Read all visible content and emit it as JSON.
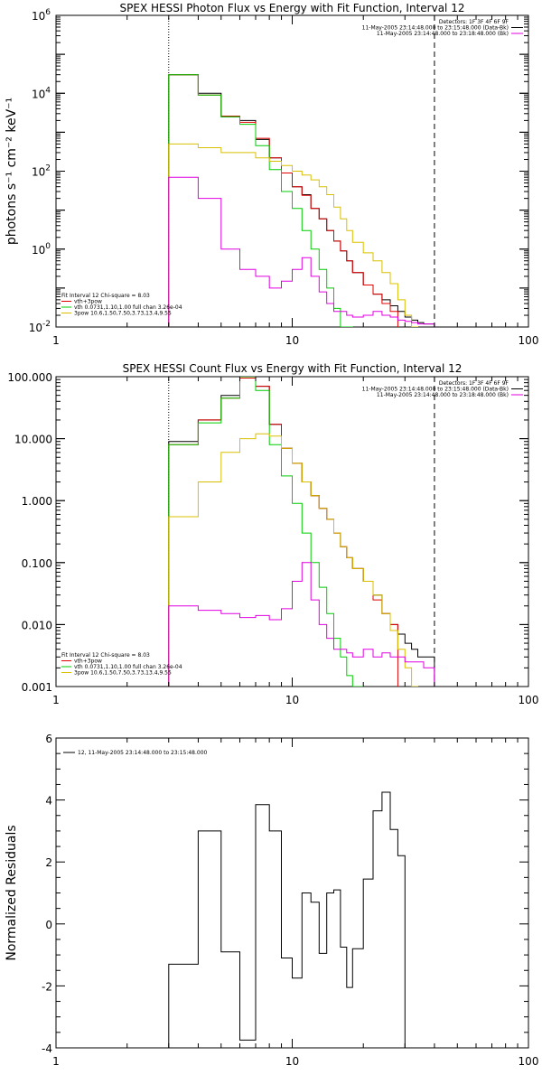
{
  "chart_data": [
    {
      "type": "line",
      "title": "SPEX HESSI Photon Flux vs Energy with Fit Function, Interval 12",
      "xlabel": "",
      "ylabel": "photons s⁻¹ cm⁻² keV⁻¹",
      "xscale": "log",
      "yscale": "log",
      "xlim": [
        1,
        100
      ],
      "ylim": [
        0.01,
        1000000
      ],
      "xticks": [
        1,
        10,
        100
      ],
      "xtick_labels": [
        "1",
        "10",
        "100"
      ],
      "yticks": [
        0.01,
        1,
        100,
        10000,
        1000000
      ],
      "ytick_labels": [
        {
          "base": "10",
          "exp": "-2"
        },
        {
          "base": "10",
          "exp": "0"
        },
        {
          "base": "10",
          "exp": "2"
        },
        {
          "base": "10",
          "exp": "4"
        },
        {
          "base": "10",
          "exp": "6"
        }
      ],
      "vlines": [
        {
          "x": 3,
          "style": "dotted"
        },
        {
          "x": 40,
          "style": "dashed"
        }
      ],
      "legend_tr": [
        "Detectors: 1F 3F 4F 6F 9F",
        "11-May-2005 23:14:48.000 to 23:15:48.000 (Data-Bk)",
        "11-May-2005 23:14:48.000 to 23:18:48.000 (Bk)"
      ],
      "legend_tr_colors": [
        "#000000",
        "#000000",
        "#e000e0"
      ],
      "legend_bl": [
        "Fit Interval 12   Chi-square = 8.03",
        "vth+3pow",
        "vth 0.0731,1.10,1.00  full chan 3.26e-04",
        "3pow 10.6,1.50,7.50,3.73,13.4,9.55"
      ],
      "legend_bl_colors": [
        "",
        "#e00000",
        "#00cc00",
        "#d8c000"
      ],
      "edges": [
        3,
        4,
        5,
        6,
        7,
        8,
        9,
        10,
        11,
        12,
        13,
        14,
        15,
        16,
        17,
        18,
        20,
        22,
        24,
        26,
        28,
        30,
        32,
        34,
        36,
        38,
        40
      ],
      "series": [
        {
          "color": "#000000",
          "values": [
            30000,
            10000,
            2500,
            2000,
            650,
            220,
            90,
            40,
            25,
            11,
            6,
            3,
            1.6,
            0.9,
            0.5,
            0.25,
            0.12,
            0.07,
            0.05,
            0.035,
            0.025,
            0.018,
            0.015,
            0.013,
            0.012,
            0.012
          ]
        },
        {
          "color": "#e00000",
          "values": [
            30000,
            9000,
            2600,
            1800,
            700,
            220,
            90,
            40,
            24,
            11,
            6,
            3,
            1.6,
            0.9,
            0.5,
            0.25,
            0.12,
            0.07,
            0.04,
            0.025
          ]
        },
        {
          "color": "#00cc00",
          "values": [
            30000,
            9000,
            2500,
            1600,
            450,
            110,
            30,
            11,
            3,
            1,
            0.3,
            0.1,
            0.03,
            0.01,
            0.01
          ]
        },
        {
          "color": "#d8c000",
          "values": [
            500,
            400,
            300,
            300,
            220,
            180,
            140,
            100,
            80,
            60,
            40,
            25,
            12,
            6,
            3,
            1.5,
            0.8,
            0.5,
            0.25,
            0.13,
            0.05,
            0.02,
            0.01
          ]
        },
        {
          "color": "#e000e0",
          "values": [
            70,
            20,
            1,
            0.3,
            0.2,
            0.1,
            0.15,
            0.3,
            0.6,
            0.2,
            0.08,
            0.04,
            0.025,
            0.025,
            0.02,
            0.018,
            0.02,
            0.025,
            0.02,
            0.018,
            0.015,
            0.014,
            0.013,
            0.012,
            0.012,
            0.012
          ]
        }
      ]
    },
    {
      "type": "line",
      "title": "SPEX HESSI Count Flux vs Energy with Fit Function, Interval 12",
      "xlabel": "",
      "ylabel": "",
      "xscale": "log",
      "yscale": "log",
      "xlim": [
        1,
        100
      ],
      "ylim": [
        0.001,
        100
      ],
      "xticks": [
        1,
        10,
        100
      ],
      "xtick_labels": [
        "1",
        "10",
        "100"
      ],
      "yticks": [
        0.001,
        0.01,
        0.1,
        1,
        10,
        100
      ],
      "ytick_labels": [
        "0.001",
        "0.010",
        "0.100",
        "1.000",
        "10.000",
        "100.000"
      ],
      "vlines": [
        {
          "x": 3,
          "style": "dotted"
        },
        {
          "x": 40,
          "style": "dashed"
        }
      ],
      "legend_tr": [
        "Detectors: 1F 3F 4F 6F 9F",
        "11-May-2005 23:14:48.000 to 23:15:48.000 (Data-Bk)",
        "11-May-2005 23:14:48.000 to 23:18:48.000 (Bk)"
      ],
      "legend_tr_colors": [
        "#000000",
        "#000000",
        "#e000e0"
      ],
      "legend_bl": [
        "Fit Interval 12   Chi-square = 8.03",
        "vth+3pow",
        "vth 0.0731,1.10,1.00  full chan 3.26e-04",
        "3pow 10.6,1.50,7.50,3.73,13.4,9.55"
      ],
      "legend_bl_colors": [
        "",
        "#e00000",
        "#00cc00",
        "#d8c000"
      ],
      "edges": [
        3,
        4,
        5,
        6,
        7,
        8,
        9,
        10,
        11,
        12,
        13,
        14,
        15,
        16,
        17,
        18,
        20,
        22,
        24,
        26,
        28,
        30,
        32,
        34,
        36,
        38,
        40
      ],
      "series": [
        {
          "color": "#000000",
          "values": [
            9,
            20,
            50,
            100,
            70,
            17,
            7,
            4,
            2,
            1.2,
            0.75,
            0.5,
            0.3,
            0.18,
            0.12,
            0.08,
            0.05,
            0.03,
            0.015,
            0.01,
            0.007,
            0.005,
            0.004,
            0.003,
            0.003,
            0.003
          ]
        },
        {
          "color": "#e00000",
          "values": [
            8,
            20,
            45,
            95,
            70,
            17,
            7,
            4,
            2,
            1.2,
            0.75,
            0.5,
            0.3,
            0.18,
            0.12,
            0.08,
            0.05,
            0.025,
            0.015,
            0.01
          ]
        },
        {
          "color": "#00cc00",
          "values": [
            8,
            18,
            45,
            100,
            60,
            8,
            2.5,
            0.9,
            0.3,
            0.1,
            0.04,
            0.015,
            0.006,
            0.003,
            0.0015,
            0.001
          ]
        },
        {
          "color": "#d8c000",
          "values": [
            0.55,
            2,
            6,
            10,
            12,
            11,
            7,
            4,
            2,
            1.2,
            0.75,
            0.5,
            0.3,
            0.18,
            0.12,
            0.08,
            0.05,
            0.03,
            0.015,
            0.008,
            0.004,
            0.002,
            0.001
          ]
        },
        {
          "color": "#e000e0",
          "values": [
            0.02,
            0.017,
            0.015,
            0.013,
            0.014,
            0.012,
            0.018,
            0.05,
            0.1,
            0.025,
            0.01,
            0.006,
            0.004,
            0.004,
            0.0035,
            0.003,
            0.004,
            0.003,
            0.0035,
            0.003,
            0.003,
            0.0025,
            0.0025,
            0.0025,
            0.002,
            0.002
          ]
        }
      ]
    },
    {
      "type": "line",
      "title": "",
      "xlabel": "",
      "ylabel": "Normalized Residuals",
      "xscale": "log",
      "yscale": "linear",
      "xlim": [
        1,
        100
      ],
      "ylim": [
        -4,
        6
      ],
      "xticks": [
        1,
        10,
        100
      ],
      "xtick_labels": [
        "1",
        "10",
        "100"
      ],
      "yticks": [
        -4,
        -2,
        0,
        2,
        4,
        6
      ],
      "ytick_labels": [
        "-4",
        "-2",
        "0",
        "2",
        "4",
        "6"
      ],
      "legend_tl": [
        "12, 11-May-2005 23:14:48.000 to 23:15:48.000"
      ],
      "edges": [
        3,
        4,
        5,
        6,
        7,
        8,
        9,
        10,
        11,
        12,
        13,
        14,
        15,
        16,
        17,
        18,
        20,
        22,
        24,
        26,
        28,
        30,
        32,
        34,
        36,
        38,
        40
      ],
      "series": [
        {
          "color": "#000000",
          "values": [
            -1.3,
            3.0,
            -0.9,
            -3.75,
            3.85,
            3.0,
            -1.1,
            -1.75,
            1.0,
            0.7,
            -0.95,
            1.0,
            1.1,
            -0.75,
            -2.05,
            -0.8,
            1.45,
            3.65,
            4.25,
            3.05,
            2.2
          ]
        }
      ]
    }
  ]
}
